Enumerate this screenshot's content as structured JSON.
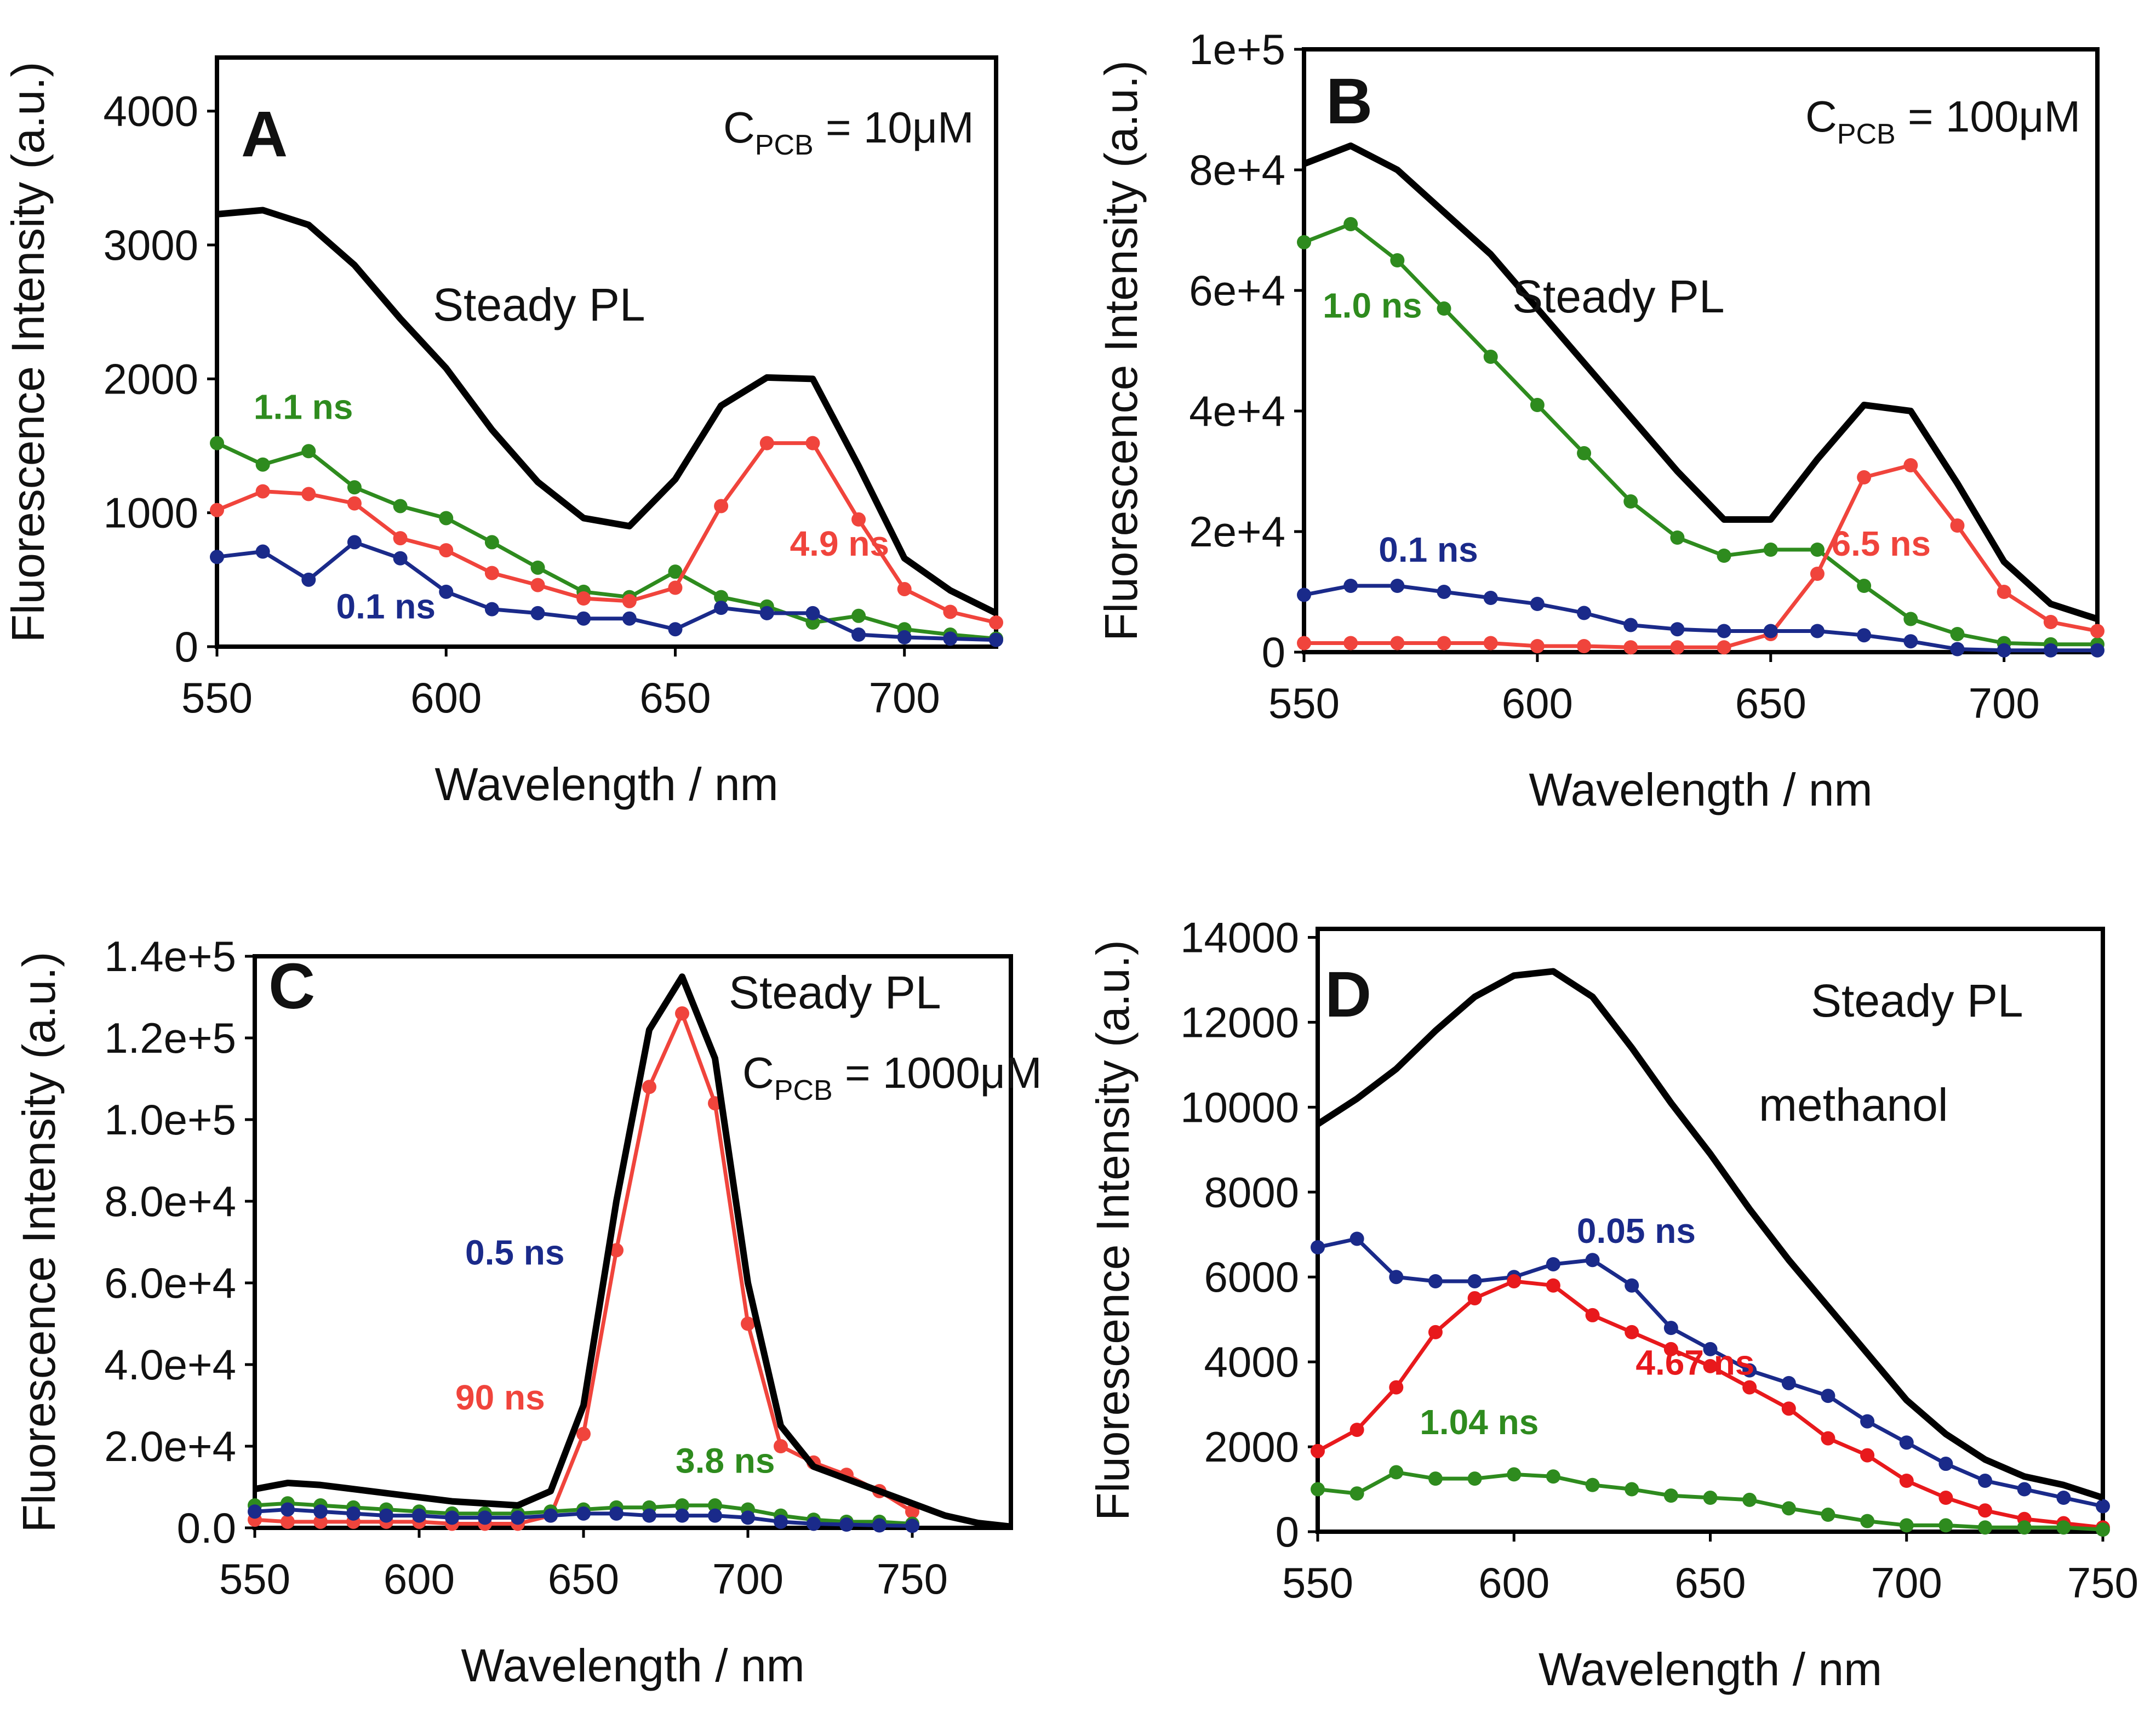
{
  "chart_data": [
    {
      "id": "A",
      "type": "line",
      "panel_letter": "A",
      "annotations": {
        "steady": "Steady PL",
        "conc_prefix": "C",
        "conc_sub": "PCB",
        "conc_value": " = 10μM"
      },
      "xlabel": "Wavelength / nm",
      "ylabel": "Fluorescence Intensity (a.u.)",
      "xlim": [
        550,
        720
      ],
      "ylim": [
        0,
        4400
      ],
      "xticks": [
        550,
        600,
        650,
        700
      ],
      "xtick_labels": [
        "550",
        "600",
        "650",
        "700"
      ],
      "yticks": [
        0,
        1000,
        2000,
        3000,
        4000
      ],
      "ytick_labels": [
        "0",
        "1000",
        "2000",
        "3000",
        "4000"
      ],
      "steady": {
        "name": "Steady PL",
        "x": [
          550,
          560,
          570,
          580,
          590,
          600,
          610,
          620,
          630,
          640,
          650,
          660,
          670,
          680,
          690,
          700,
          710,
          720
        ],
        "y": [
          3230,
          3260,
          3150,
          2850,
          2450,
          2080,
          1620,
          1230,
          960,
          900,
          1250,
          1800,
          2010,
          2000,
          1350,
          660,
          420,
          250
        ]
      },
      "series": [
        {
          "name": "1.1 ns",
          "color": "#2e8b1e",
          "label_pos": [
            558,
            1700
          ],
          "x": [
            550,
            560,
            570,
            580,
            590,
            600,
            610,
            620,
            630,
            640,
            650,
            660,
            670,
            680,
            690,
            700,
            710,
            720
          ],
          "y": [
            1520,
            1360,
            1460,
            1190,
            1050,
            960,
            780,
            590,
            410,
            370,
            560,
            370,
            300,
            180,
            230,
            130,
            90,
            60
          ]
        },
        {
          "name": "4.9 ns",
          "color": "#f0443c",
          "label_pos": [
            675,
            680
          ],
          "x": [
            550,
            560,
            570,
            580,
            590,
            600,
            610,
            620,
            630,
            640,
            650,
            660,
            670,
            680,
            690,
            700,
            710,
            720
          ],
          "y": [
            1020,
            1160,
            1140,
            1070,
            810,
            720,
            550,
            460,
            360,
            340,
            440,
            1050,
            1520,
            1520,
            950,
            430,
            260,
            180
          ]
        },
        {
          "name": "0.1 ns",
          "color": "#1a2a8a",
          "label_pos": [
            576,
            210
          ],
          "x": [
            550,
            560,
            570,
            580,
            590,
            600,
            610,
            620,
            630,
            640,
            650,
            660,
            670,
            680,
            690,
            700,
            710,
            720
          ],
          "y": [
            670,
            710,
            500,
            780,
            660,
            410,
            280,
            250,
            210,
            210,
            130,
            290,
            250,
            250,
            90,
            70,
            60,
            50
          ]
        }
      ]
    },
    {
      "id": "B",
      "type": "line",
      "panel_letter": "B",
      "annotations": {
        "steady": "Steady PL",
        "conc_prefix": "C",
        "conc_sub": "PCB",
        "conc_value": " = 100μM"
      },
      "xlabel": "Wavelength / nm",
      "ylabel": "Fluorescence Intensity (a.u.)",
      "xlim": [
        550,
        720
      ],
      "ylim": [
        0,
        100000
      ],
      "xticks": [
        550,
        600,
        650,
        700
      ],
      "xtick_labels": [
        "550",
        "600",
        "650",
        "700"
      ],
      "yticks": [
        0,
        20000,
        40000,
        60000,
        80000,
        100000
      ],
      "ytick_labels": [
        "0",
        "2e+4",
        "4e+4",
        "6e+4",
        "8e+4",
        "1e+5"
      ],
      "steady": {
        "name": "Steady PL",
        "x": [
          550,
          560,
          570,
          580,
          590,
          600,
          610,
          620,
          630,
          640,
          650,
          660,
          670,
          680,
          690,
          700,
          710,
          720
        ],
        "y": [
          81000,
          84000,
          80000,
          73000,
          66000,
          57000,
          48000,
          39000,
          30000,
          22000,
          22000,
          32000,
          41000,
          40000,
          28000,
          15000,
          8000,
          5500
        ]
      },
      "series": [
        {
          "name": "1.0 ns",
          "color": "#2e8b1e",
          "label_pos": [
            554,
            55500
          ],
          "x": [
            550,
            560,
            570,
            580,
            590,
            600,
            610,
            620,
            630,
            640,
            650,
            660,
            670,
            680,
            690,
            700,
            710,
            720
          ],
          "y": [
            68000,
            71000,
            65000,
            57000,
            49000,
            41000,
            33000,
            25000,
            19000,
            16000,
            17000,
            17000,
            11000,
            5500,
            3000,
            1500,
            1300,
            1300
          ]
        },
        {
          "name": "6.5 ns",
          "color": "#f0443c",
          "label_pos": [
            663,
            16000
          ],
          "x": [
            550,
            560,
            570,
            580,
            590,
            600,
            610,
            620,
            630,
            640,
            650,
            660,
            670,
            680,
            690,
            700,
            710,
            720
          ],
          "y": [
            1500,
            1500,
            1500,
            1500,
            1500,
            1000,
            1000,
            800,
            800,
            800,
            3000,
            13000,
            29000,
            31000,
            21000,
            10000,
            5000,
            3500
          ]
        },
        {
          "name": "0.1 ns",
          "color": "#1a2a8a",
          "label_pos": [
            566,
            15000
          ],
          "x": [
            550,
            560,
            570,
            580,
            590,
            600,
            610,
            620,
            630,
            640,
            650,
            660,
            670,
            680,
            690,
            700,
            710,
            720
          ],
          "y": [
            9500,
            11000,
            11000,
            10000,
            9000,
            8000,
            6500,
            4500,
            3800,
            3500,
            3500,
            3500,
            2800,
            1800,
            500,
            300,
            300,
            300
          ]
        }
      ]
    },
    {
      "id": "C",
      "type": "line",
      "panel_letter": "C",
      "annotations": {
        "steady": "Steady PL",
        "conc_prefix": "C",
        "conc_sub": "PCB",
        "conc_value": " = 1000μM"
      },
      "xlabel": "Wavelength / nm",
      "ylabel": "Fluorescence Intensity (a.u.)",
      "xlim": [
        550,
        780
      ],
      "ylim": [
        0,
        140000
      ],
      "xticks": [
        550,
        600,
        650,
        700,
        750
      ],
      "xtick_labels": [
        "550",
        "600",
        "650",
        "700",
        "750"
      ],
      "yticks": [
        0,
        20000,
        40000,
        60000,
        80000,
        100000,
        120000,
        140000
      ],
      "ytick_labels": [
        "0.0",
        "2.0e+4",
        "4.0e+4",
        "6.0e+4",
        "8.0e+4",
        "1.0e+5",
        "1.2e+5",
        "1.4e+5"
      ],
      "steady": {
        "name": "Steady PL",
        "x": [
          550,
          560,
          570,
          580,
          590,
          600,
          610,
          620,
          630,
          640,
          650,
          660,
          670,
          680,
          690,
          700,
          710,
          720,
          730,
          740,
          750,
          760,
          770,
          780
        ],
        "y": [
          9500,
          11000,
          10500,
          9500,
          8500,
          7500,
          6500,
          6000,
          5500,
          9000,
          30000,
          80000,
          122000,
          135000,
          115000,
          60000,
          25000,
          15000,
          12000,
          9000,
          6000,
          3000,
          1200,
          300
        ]
      },
      "series": [
        {
          "name": "90 ns",
          "color": "#f0443c",
          "label_pos": [
            611,
            29000
          ],
          "x": [
            550,
            560,
            570,
            580,
            590,
            600,
            610,
            620,
            630,
            640,
            650,
            660,
            670,
            680,
            690,
            700,
            710,
            720,
            730,
            740,
            750
          ],
          "y": [
            2000,
            1500,
            1500,
            1500,
            1500,
            1500,
            1000,
            1000,
            1000,
            3000,
            23000,
            68000,
            108000,
            126000,
            104000,
            50000,
            20000,
            16000,
            13000,
            9000,
            4000
          ]
        },
        {
          "name": "3.8 ns",
          "color": "#2e8b1e",
          "label_pos": [
            678,
            13500
          ],
          "x": [
            550,
            560,
            570,
            580,
            590,
            600,
            610,
            620,
            630,
            640,
            650,
            660,
            670,
            680,
            690,
            700,
            710,
            720,
            730,
            740,
            750
          ],
          "y": [
            5500,
            6000,
            5500,
            5000,
            4500,
            4000,
            3500,
            3500,
            3500,
            4000,
            4500,
            5000,
            5000,
            5500,
            5500,
            4500,
            3000,
            2000,
            1500,
            1500,
            1000
          ]
        },
        {
          "name": "0.5 ns",
          "color": "#1a2a8a",
          "label_pos": [
            614,
            64500
          ],
          "x": [
            550,
            560,
            570,
            580,
            590,
            600,
            610,
            620,
            630,
            640,
            650,
            660,
            670,
            680,
            690,
            700,
            710,
            720,
            730,
            740,
            750
          ],
          "y": [
            4000,
            4500,
            4000,
            3500,
            3000,
            3000,
            2500,
            2500,
            2500,
            3000,
            3500,
            3500,
            3000,
            3000,
            3000,
            2500,
            1500,
            1000,
            800,
            600,
            500
          ]
        }
      ]
    },
    {
      "id": "D",
      "type": "line",
      "panel_letter": "D",
      "annotations": {
        "steady": "Steady PL",
        "solvent": "methanol"
      },
      "xlabel": "Wavelength / nm",
      "ylabel": "Fluorescence Intensity (a.u.)",
      "xlim": [
        550,
        750
      ],
      "ylim": [
        0,
        14200
      ],
      "xticks": [
        550,
        600,
        650,
        700,
        750
      ],
      "xtick_labels": [
        "550",
        "600",
        "650",
        "700",
        "750"
      ],
      "yticks": [
        0,
        2000,
        4000,
        6000,
        8000,
        10000,
        12000,
        14000
      ],
      "ytick_labels": [
        "0",
        "2000",
        "4000",
        "6000",
        "8000",
        "10000",
        "12000",
        "14000"
      ],
      "steady": {
        "name": "Steady PL",
        "x": [
          550,
          560,
          570,
          580,
          590,
          600,
          610,
          620,
          630,
          640,
          650,
          660,
          670,
          680,
          690,
          700,
          710,
          720,
          730,
          740,
          750
        ],
        "y": [
          9600,
          10200,
          10900,
          11800,
          12600,
          13100,
          13200,
          12600,
          11400,
          10100,
          8900,
          7600,
          6400,
          5300,
          4200,
          3100,
          2300,
          1700,
          1300,
          1100,
          800
        ]
      },
      "series": [
        {
          "name": "0.05 ns",
          "color": "#1a2a8a",
          "label_pos": [
            616,
            6800
          ],
          "x": [
            550,
            560,
            570,
            580,
            590,
            600,
            610,
            620,
            630,
            640,
            650,
            660,
            670,
            680,
            690,
            700,
            710,
            720,
            730,
            740,
            750
          ],
          "y": [
            6700,
            6900,
            6000,
            5900,
            5900,
            6000,
            6300,
            6400,
            5800,
            4800,
            4300,
            3800,
            3500,
            3200,
            2600,
            2100,
            1600,
            1200,
            1000,
            800,
            600
          ]
        },
        {
          "name": "4.67 ns",
          "color": "#e8191c",
          "label_pos": [
            631,
            3700
          ],
          "x": [
            550,
            560,
            570,
            580,
            590,
            600,
            610,
            620,
            630,
            640,
            650,
            660,
            670,
            680,
            690,
            700,
            710,
            720,
            730,
            740,
            750
          ],
          "y": [
            1900,
            2400,
            3400,
            4700,
            5500,
            5900,
            5800,
            5100,
            4700,
            4300,
            3900,
            3400,
            2900,
            2200,
            1800,
            1200,
            800,
            500,
            300,
            200,
            100
          ]
        },
        {
          "name": "1.04 ns",
          "color": "#2e8b1e",
          "label_pos": [
            576,
            2300
          ],
          "x": [
            550,
            560,
            570,
            580,
            590,
            600,
            610,
            620,
            630,
            640,
            650,
            660,
            670,
            680,
            690,
            700,
            710,
            720,
            730,
            740,
            750
          ],
          "y": [
            1000,
            900,
            1400,
            1250,
            1250,
            1350,
            1300,
            1100,
            1000,
            850,
            800,
            750,
            550,
            400,
            250,
            150,
            150,
            100,
            100,
            100,
            50
          ]
        }
      ]
    }
  ]
}
